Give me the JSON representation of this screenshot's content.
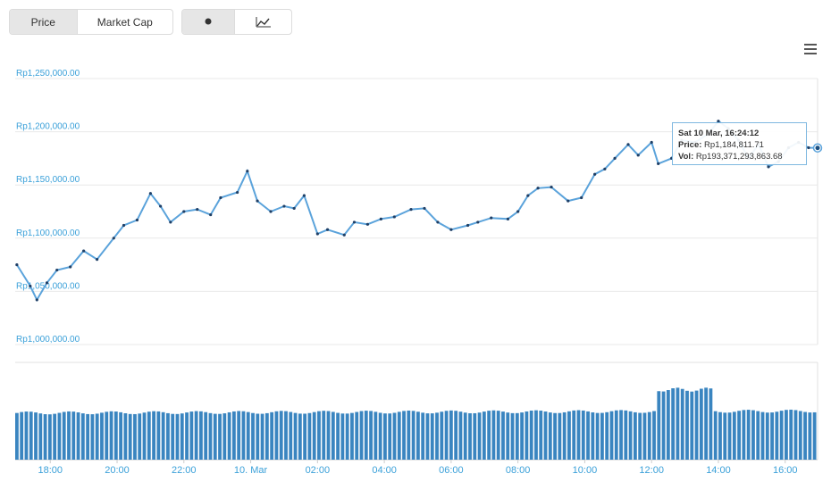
{
  "controls": {
    "range_tabs": [
      {
        "label": "Price",
        "active": true
      },
      {
        "label": "Market Cap",
        "active": false
      }
    ],
    "view_toggle": [
      {
        "icon": "dot-icon",
        "active": true
      },
      {
        "icon": "line-chart-icon",
        "active": false
      }
    ],
    "menu_icon": "hamburger-menu-icon"
  },
  "colors": {
    "line": "#5ba3db",
    "marker": "#1f3f66",
    "volume_bar": "#3a85c0",
    "axis_label": "#3aa0d9",
    "grid": "#e8e8e8"
  },
  "tooltip": {
    "date": "Sat 10 Mar, 16:24:12",
    "price_label": "Price:",
    "price_value": "Rp1,184,811.71",
    "vol_label": "Vol:",
    "vol_value": "Rp193,371,293,863.68"
  },
  "chart_data": {
    "type": "line",
    "title": "",
    "xlabel": "",
    "ylabel": "",
    "y_ticks": [
      "Rp1,250,000.00",
      "Rp1,200,000.00",
      "Rp1,150,000.00",
      "Rp1,100,000.00",
      "Rp1,050,000.00",
      "Rp1,000,000.00"
    ],
    "ylim": [
      1000000,
      1250000
    ],
    "x_ticks": [
      "18:00",
      "20:00",
      "22:00",
      "10. Mar",
      "02:00",
      "04:00",
      "06:00",
      "08:00",
      "10:00",
      "12:00",
      "14:00",
      "16:00"
    ],
    "x_range_hours": [
      16.95,
      40.97
    ],
    "series": [
      {
        "values_hours_price": [
          [
            17.0,
            1075000
          ],
          [
            17.4,
            1055000
          ],
          [
            17.6,
            1042000
          ],
          [
            17.9,
            1058000
          ],
          [
            18.2,
            1070000
          ],
          [
            18.6,
            1073000
          ],
          [
            19.0,
            1088000
          ],
          [
            19.4,
            1080000
          ],
          [
            19.9,
            1100000
          ],
          [
            20.2,
            1112000
          ],
          [
            20.6,
            1117000
          ],
          [
            21.0,
            1142000
          ],
          [
            21.3,
            1130000
          ],
          [
            21.6,
            1115000
          ],
          [
            22.0,
            1125000
          ],
          [
            22.4,
            1127000
          ],
          [
            22.8,
            1122000
          ],
          [
            23.1,
            1138000
          ],
          [
            23.6,
            1143000
          ],
          [
            23.9,
            1163000
          ],
          [
            24.2,
            1135000
          ],
          [
            24.6,
            1125000
          ],
          [
            25.0,
            1130000
          ],
          [
            25.3,
            1128000
          ],
          [
            25.6,
            1140000
          ],
          [
            26.0,
            1104000
          ],
          [
            26.3,
            1108000
          ],
          [
            26.8,
            1103000
          ],
          [
            27.1,
            1115000
          ],
          [
            27.5,
            1113000
          ],
          [
            27.9,
            1118000
          ],
          [
            28.3,
            1120000
          ],
          [
            28.8,
            1127000
          ],
          [
            29.2,
            1128000
          ],
          [
            29.6,
            1115000
          ],
          [
            30.0,
            1108000
          ],
          [
            30.5,
            1112000
          ],
          [
            30.8,
            1115000
          ],
          [
            31.2,
            1119000
          ],
          [
            31.7,
            1118000
          ],
          [
            32.0,
            1125000
          ],
          [
            32.3,
            1140000
          ],
          [
            32.6,
            1147000
          ],
          [
            33.0,
            1148000
          ],
          [
            33.5,
            1135000
          ],
          [
            33.9,
            1138000
          ],
          [
            34.3,
            1160000
          ],
          [
            34.6,
            1165000
          ],
          [
            34.9,
            1175000
          ],
          [
            35.3,
            1188000
          ],
          [
            35.6,
            1178000
          ],
          [
            36.0,
            1190000
          ],
          [
            36.2,
            1170000
          ],
          [
            36.6,
            1175000
          ],
          [
            36.9,
            1192000
          ],
          [
            37.3,
            1190000
          ],
          [
            37.7,
            1198000
          ],
          [
            38.0,
            1210000
          ],
          [
            38.3,
            1203000
          ],
          [
            38.6,
            1192000
          ],
          [
            38.9,
            1175000
          ],
          [
            39.2,
            1188000
          ],
          [
            39.5,
            1167000
          ],
          [
            39.8,
            1172000
          ],
          [
            40.1,
            1185000
          ],
          [
            40.4,
            1190000
          ],
          [
            40.7,
            1185000
          ],
          [
            40.97,
            1184812
          ]
        ]
      }
    ],
    "volume": {
      "unit": "Rp",
      "bar_count": 170,
      "baseline_level": 0.48,
      "highlight_hours": [
        36.1,
        37.9
      ],
      "highlight_level": 0.72
    }
  }
}
